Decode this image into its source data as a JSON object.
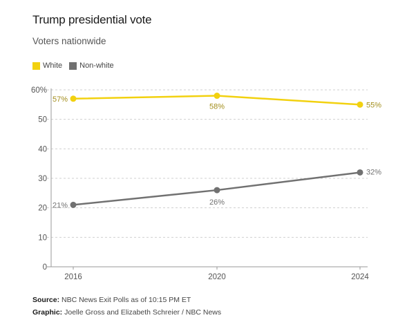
{
  "title": "Trump presidential vote",
  "subtitle": "Voters nationwide",
  "legend": {
    "items": [
      {
        "label": "White",
        "color": "#f2d10f"
      },
      {
        "label": "Non-white",
        "color": "#717171"
      }
    ]
  },
  "footer": {
    "source_label": "Source:",
    "source_text": "NBC News Exit Polls as of 10:15 PM ET",
    "graphic_label": "Graphic:",
    "graphic_text": "Joelle Gross and Elizabeth Schreier / NBC News"
  },
  "chart_data": {
    "type": "line",
    "title": "Trump presidential vote",
    "subtitle": "Voters nationwide",
    "x": [
      "2016",
      "2020",
      "2024"
    ],
    "ylim": [
      0,
      60
    ],
    "yticks": [
      0,
      10,
      20,
      30,
      40,
      50,
      60
    ],
    "ytick_labels": [
      "0",
      "10",
      "20",
      "30",
      "40",
      "50",
      "60%"
    ],
    "grid": true,
    "legend_position": "top-left",
    "series": [
      {
        "name": "White",
        "color": "#f2d10f",
        "label_color": "#a38e1c",
        "values": [
          57,
          58,
          55
        ],
        "labels": [
          "57%",
          "58%",
          "55%"
        ]
      },
      {
        "name": "Non-white",
        "color": "#717171",
        "label_color": "#717171",
        "values": [
          21,
          26,
          32
        ],
        "labels": [
          "21%",
          "26%",
          "32%"
        ]
      }
    ]
  }
}
